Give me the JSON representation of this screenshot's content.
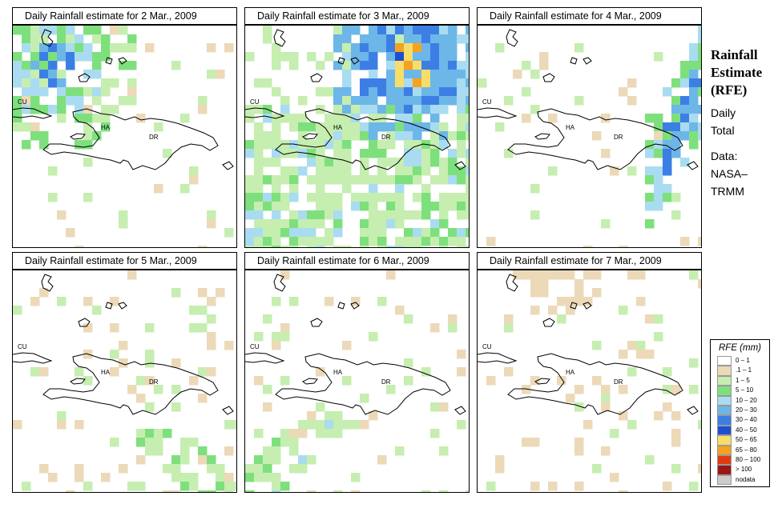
{
  "panels": [
    {
      "title": "Daily Rainfall estimate for  2 Mar., 2009"
    },
    {
      "title": "Daily Rainfall estimate for  3 Mar., 2009"
    },
    {
      "title": "Daily Rainfall estimate for  4 Mar., 2009"
    },
    {
      "title": "Daily Rainfall estimate for  5 Mar., 2009"
    },
    {
      "title": "Daily Rainfall estimate for  6 Mar., 2009"
    },
    {
      "title": "Daily Rainfall estimate for  7 Mar., 2009"
    }
  ],
  "map_labels": {
    "cuba": "CU",
    "haiti": "HA",
    "dominican_republic": "DR"
  },
  "side_title": {
    "line1": "Rainfall",
    "line2": "Estimate",
    "line3": "(RFE)"
  },
  "side_info": {
    "line1": "Daily",
    "line2": "Total",
    "line3": "Data:",
    "line4": "NASA–",
    "line5": "TRMM"
  },
  "legend": {
    "title": "RFE (mm)",
    "items": [
      {
        "label": "0 – 1",
        "color": "#ffffff"
      },
      {
        "label": ".1 – 1",
        "color": "#ecd9b8"
      },
      {
        "label": "1 – 5",
        "color": "#c6eeb0"
      },
      {
        "label": "5 – 10",
        "color": "#7ee07c"
      },
      {
        "label": "10 – 20",
        "color": "#a9dcf0"
      },
      {
        "label": "20 – 30",
        "color": "#6db6e8"
      },
      {
        "label": "30 – 40",
        "color": "#3c7fe4"
      },
      {
        "label": "40 – 50",
        "color": "#1f4fd0"
      },
      {
        "label": "50 – 65",
        "color": "#f7dd6a"
      },
      {
        "label": "65 – 80",
        "color": "#f5a21e"
      },
      {
        "label": "80 – 100",
        "color": "#e03b10"
      },
      {
        "label": "> 100",
        "color": "#9b1616"
      },
      {
        "label": "nodata",
        "color": "#cccccc"
      }
    ]
  }
}
